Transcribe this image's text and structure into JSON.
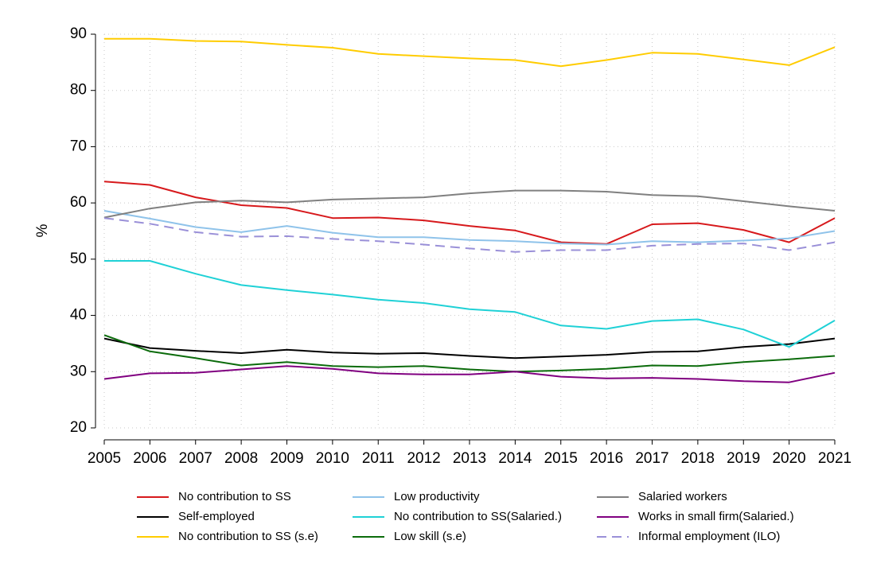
{
  "chart_data": {
    "type": "line",
    "title": "",
    "xlabel": "",
    "ylabel": "%",
    "ylim": [
      20,
      90
    ],
    "yticks": [
      20,
      30,
      40,
      50,
      60,
      70,
      80,
      90
    ],
    "x": [
      2005,
      2006,
      2007,
      2008,
      2009,
      2010,
      2011,
      2012,
      2013,
      2014,
      2015,
      2016,
      2017,
      2018,
      2019,
      2020,
      2021
    ],
    "x_tick_labels": [
      "2005",
      "2006",
      "2007",
      "2008",
      "2009",
      "2010",
      "2011",
      "2012",
      "2013",
      "2014",
      "2015",
      "2016",
      "2017",
      "2018",
      "2019",
      "2020",
      "2021"
    ],
    "grid": true,
    "legend_position": "bottom",
    "series": [
      {
        "name": "No contribution to SS",
        "color": "#d7191c",
        "dash": "solid",
        "values": [
          63.8,
          63.2,
          61.0,
          59.6,
          59.1,
          57.3,
          57.4,
          56.9,
          55.9,
          55.1,
          53.0,
          52.7,
          56.2,
          56.4,
          55.2,
          53.0,
          57.3
        ]
      },
      {
        "name": "Self-employed",
        "color": "#000000",
        "dash": "solid",
        "values": [
          35.9,
          34.2,
          33.7,
          33.3,
          33.9,
          33.4,
          33.2,
          33.3,
          32.8,
          32.4,
          32.7,
          33.0,
          33.5,
          33.6,
          34.4,
          34.9,
          35.9
        ]
      },
      {
        "name": "No contribution to SS (s.e)",
        "color": "#ffcc00",
        "dash": "solid",
        "values": [
          89.2,
          89.2,
          88.8,
          88.7,
          88.1,
          87.6,
          86.5,
          86.1,
          85.7,
          85.4,
          84.3,
          85.4,
          86.7,
          86.5,
          85.5,
          84.5,
          87.7
        ]
      },
      {
        "name": "Low productivity",
        "color": "#8fc3ea",
        "dash": "solid",
        "values": [
          58.6,
          57.2,
          55.7,
          54.8,
          55.9,
          54.7,
          53.9,
          53.9,
          53.4,
          53.2,
          52.8,
          52.6,
          53.2,
          53.0,
          53.3,
          53.7,
          55.0
        ]
      },
      {
        "name": "No contribution to SS(Salaried.)",
        "color": "#1fd1d6",
        "dash": "solid",
        "values": [
          49.7,
          49.7,
          47.4,
          45.4,
          44.5,
          43.7,
          42.8,
          42.2,
          41.1,
          40.6,
          38.2,
          37.6,
          39.0,
          39.3,
          37.5,
          34.4,
          39.1
        ]
      },
      {
        "name": "Low skill (s.e)",
        "color": "#0b6b0b",
        "dash": "solid",
        "values": [
          36.5,
          33.6,
          32.4,
          31.1,
          31.7,
          31.0,
          30.8,
          31.0,
          30.4,
          30.0,
          30.2,
          30.5,
          31.1,
          31.0,
          31.7,
          32.2,
          32.8
        ]
      },
      {
        "name": "Salaried workers",
        "color": "#808080",
        "dash": "solid",
        "values": [
          57.4,
          59.0,
          60.1,
          60.4,
          60.1,
          60.6,
          60.8,
          61.0,
          61.7,
          62.2,
          62.2,
          62.0,
          61.4,
          61.2,
          60.3,
          59.4,
          58.6
        ]
      },
      {
        "name": "Works in small firm(Salaried.)",
        "color": "#800080",
        "dash": "solid",
        "values": [
          28.7,
          29.7,
          29.8,
          30.4,
          31.0,
          30.5,
          29.7,
          29.5,
          29.5,
          30.0,
          29.1,
          28.8,
          28.9,
          28.7,
          28.3,
          28.1,
          29.8
        ]
      },
      {
        "name": "Informal employment (ILO)",
        "color": "#9a90d8",
        "dash": "dashed",
        "values": [
          57.3,
          56.3,
          54.8,
          54.0,
          54.1,
          53.6,
          53.2,
          52.6,
          51.9,
          51.3,
          51.6,
          51.6,
          52.4,
          52.7,
          52.8,
          51.6,
          53.0
        ]
      }
    ]
  }
}
